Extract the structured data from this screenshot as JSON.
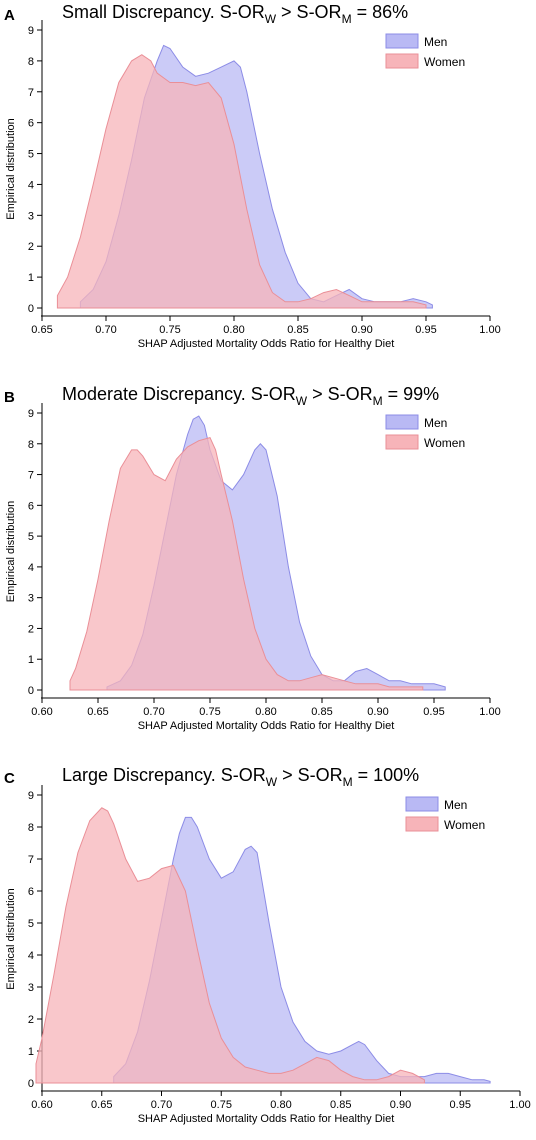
{
  "panels": [
    {
      "letter": "A",
      "title_main": "Small Discrepancy. S-OR",
      "title_sub1": "W",
      "title_mid": " > S-OR",
      "title_sub2": "M",
      "title_end": " = 86%"
    },
    {
      "letter": "B",
      "title_main": "Moderate Discrepancy. S-OR",
      "title_sub1": "W",
      "title_mid": " > S-OR",
      "title_sub2": "M",
      "title_end": " = 99%"
    },
    {
      "letter": "C",
      "title_main": "Large Discrepancy. S-OR",
      "title_sub1": "W",
      "title_mid": " > S-OR",
      "title_sub2": "M",
      "title_end": " = 100%"
    }
  ],
  "colors": {
    "men_fill": "#b9b9f4",
    "men_line": "#8c8ce6",
    "women_fill": "#f7b4b9",
    "women_line": "#ea8f97"
  },
  "chart_data": [
    {
      "type": "area",
      "title": "Small Discrepancy. S-OR_W > S-OR_M = 86%",
      "xlabel": "SHAP Adjusted Mortality Odds Ratio for Healthy Diet",
      "ylabel": "Empirical distribution",
      "xlim": [
        0.65,
        1.0
      ],
      "ylim": [
        0,
        9
      ],
      "xticks": [
        0.65,
        0.7,
        0.75,
        0.8,
        0.85,
        0.9,
        0.95,
        1.0
      ],
      "yticks": [
        0,
        1,
        2,
        3,
        4,
        5,
        6,
        7,
        8,
        9
      ],
      "legend": "top-right",
      "series": [
        {
          "name": "Men",
          "x": [
            0.68,
            0.68,
            0.69,
            0.7,
            0.71,
            0.72,
            0.73,
            0.74,
            0.745,
            0.75,
            0.76,
            0.77,
            0.78,
            0.79,
            0.8,
            0.805,
            0.81,
            0.82,
            0.83,
            0.84,
            0.85,
            0.86,
            0.87,
            0.88,
            0.89,
            0.9,
            0.91,
            0.92,
            0.93,
            0.94,
            0.95,
            0.955,
            0.955
          ],
          "y": [
            0,
            0.2,
            0.6,
            1.5,
            3.0,
            4.8,
            6.8,
            8.0,
            8.5,
            8.4,
            7.8,
            7.5,
            7.6,
            7.8,
            8.0,
            7.8,
            7.0,
            5.0,
            3.2,
            1.8,
            0.8,
            0.3,
            0.2,
            0.4,
            0.6,
            0.3,
            0.2,
            0.2,
            0.2,
            0.3,
            0.2,
            0.1,
            0
          ]
        },
        {
          "name": "Women",
          "x": [
            0.662,
            0.662,
            0.67,
            0.68,
            0.69,
            0.7,
            0.71,
            0.72,
            0.728,
            0.735,
            0.74,
            0.75,
            0.76,
            0.77,
            0.78,
            0.79,
            0.8,
            0.81,
            0.82,
            0.83,
            0.84,
            0.85,
            0.86,
            0.87,
            0.88,
            0.89,
            0.9,
            0.91,
            0.92,
            0.93,
            0.94,
            0.95,
            0.95
          ],
          "y": [
            0,
            0.4,
            1.0,
            2.3,
            4.0,
            5.8,
            7.3,
            8.0,
            8.2,
            8.0,
            7.6,
            7.3,
            7.3,
            7.2,
            7.3,
            6.8,
            5.3,
            3.2,
            1.4,
            0.5,
            0.2,
            0.2,
            0.3,
            0.5,
            0.6,
            0.4,
            0.2,
            0.2,
            0.2,
            0.2,
            0.2,
            0.1,
            0
          ]
        }
      ]
    },
    {
      "type": "area",
      "title": "Moderate Discrepancy. S-OR_W > S-OR_M = 99%",
      "xlabel": "SHAP Adjusted Mortality Odds Ratio for Healthy Diet",
      "ylabel": "Empirical distribution",
      "xlim": [
        0.6,
        1.0
      ],
      "ylim": [
        0,
        9
      ],
      "xticks": [
        0.6,
        0.65,
        0.7,
        0.75,
        0.8,
        0.85,
        0.9,
        0.95,
        1.0
      ],
      "yticks": [
        0,
        1,
        2,
        3,
        4,
        5,
        6,
        7,
        8,
        9
      ],
      "legend": "top-right",
      "series": [
        {
          "name": "Men",
          "x": [
            0.658,
            0.658,
            0.67,
            0.68,
            0.69,
            0.7,
            0.71,
            0.72,
            0.73,
            0.735,
            0.74,
            0.745,
            0.75,
            0.76,
            0.77,
            0.78,
            0.79,
            0.795,
            0.8,
            0.81,
            0.82,
            0.83,
            0.84,
            0.85,
            0.86,
            0.87,
            0.88,
            0.89,
            0.9,
            0.91,
            0.92,
            0.93,
            0.94,
            0.95,
            0.96,
            0.96
          ],
          "y": [
            0,
            0.1,
            0.3,
            0.8,
            1.8,
            3.4,
            5.2,
            7.0,
            8.3,
            8.8,
            8.9,
            8.6,
            7.8,
            6.8,
            6.5,
            7.0,
            7.8,
            8.0,
            7.8,
            6.3,
            4.0,
            2.2,
            1.1,
            0.5,
            0.3,
            0.3,
            0.6,
            0.7,
            0.5,
            0.3,
            0.3,
            0.2,
            0.2,
            0.2,
            0.1,
            0
          ]
        },
        {
          "name": "Women",
          "x": [
            0.625,
            0.625,
            0.63,
            0.64,
            0.65,
            0.66,
            0.67,
            0.68,
            0.685,
            0.69,
            0.7,
            0.71,
            0.72,
            0.73,
            0.74,
            0.75,
            0.755,
            0.76,
            0.77,
            0.78,
            0.79,
            0.8,
            0.81,
            0.82,
            0.83,
            0.84,
            0.85,
            0.86,
            0.87,
            0.88,
            0.89,
            0.9,
            0.91,
            0.92,
            0.93,
            0.94,
            0.94
          ],
          "y": [
            0,
            0.3,
            0.7,
            1.9,
            3.6,
            5.5,
            7.2,
            7.8,
            7.8,
            7.6,
            7.0,
            6.8,
            7.5,
            7.9,
            8.1,
            8.2,
            7.8,
            7.0,
            5.5,
            3.6,
            2.0,
            1.0,
            0.5,
            0.3,
            0.3,
            0.4,
            0.5,
            0.4,
            0.3,
            0.2,
            0.2,
            0.2,
            0.1,
            0.1,
            0.1,
            0.1,
            0
          ]
        }
      ]
    },
    {
      "type": "area",
      "title": "Large Discrepancy. S-OR_W > S-OR_M = 100%",
      "xlabel": "SHAP Adjusted Mortality Odds Ratio for Healthy Diet",
      "ylabel": "Empirical distribution",
      "xlim": [
        0.6,
        1.0
      ],
      "ylim": [
        0,
        9
      ],
      "xticks": [
        0.6,
        0.65,
        0.7,
        0.75,
        0.8,
        0.85,
        0.9,
        0.95,
        1.0
      ],
      "yticks": [
        0,
        1,
        2,
        3,
        4,
        5,
        6,
        7,
        8,
        9
      ],
      "legend": "top-right",
      "series": [
        {
          "name": "Men",
          "x": [
            0.66,
            0.66,
            0.67,
            0.68,
            0.69,
            0.7,
            0.71,
            0.715,
            0.72,
            0.725,
            0.73,
            0.74,
            0.75,
            0.76,
            0.77,
            0.775,
            0.78,
            0.79,
            0.8,
            0.81,
            0.82,
            0.83,
            0.84,
            0.85,
            0.86,
            0.865,
            0.87,
            0.88,
            0.89,
            0.9,
            0.91,
            0.92,
            0.93,
            0.94,
            0.95,
            0.96,
            0.97,
            0.975,
            0.975
          ],
          "y": [
            0,
            0.2,
            0.6,
            1.6,
            3.2,
            5.1,
            7.0,
            7.8,
            8.3,
            8.3,
            8.0,
            7.0,
            6.4,
            6.6,
            7.3,
            7.4,
            7.2,
            5.0,
            3.0,
            1.9,
            1.3,
            1.0,
            0.9,
            1.0,
            1.2,
            1.3,
            1.2,
            0.7,
            0.3,
            0.2,
            0.2,
            0.2,
            0.3,
            0.3,
            0.2,
            0.1,
            0.1,
            0.05,
            0
          ]
        },
        {
          "name": "Women",
          "x": [
            0.595,
            0.595,
            0.6,
            0.61,
            0.62,
            0.63,
            0.64,
            0.65,
            0.655,
            0.66,
            0.67,
            0.68,
            0.69,
            0.7,
            0.71,
            0.72,
            0.73,
            0.74,
            0.75,
            0.76,
            0.77,
            0.78,
            0.79,
            0.8,
            0.81,
            0.82,
            0.83,
            0.84,
            0.85,
            0.86,
            0.87,
            0.88,
            0.89,
            0.9,
            0.91,
            0.92,
            0.92
          ],
          "y": [
            0,
            0.6,
            1.4,
            3.4,
            5.5,
            7.2,
            8.2,
            8.6,
            8.5,
            8.1,
            7.0,
            6.3,
            6.4,
            6.7,
            6.8,
            6.0,
            4.2,
            2.5,
            1.4,
            0.8,
            0.5,
            0.4,
            0.3,
            0.3,
            0.4,
            0.6,
            0.8,
            0.7,
            0.4,
            0.2,
            0.1,
            0.1,
            0.2,
            0.4,
            0.3,
            0.1,
            0
          ]
        }
      ]
    }
  ]
}
